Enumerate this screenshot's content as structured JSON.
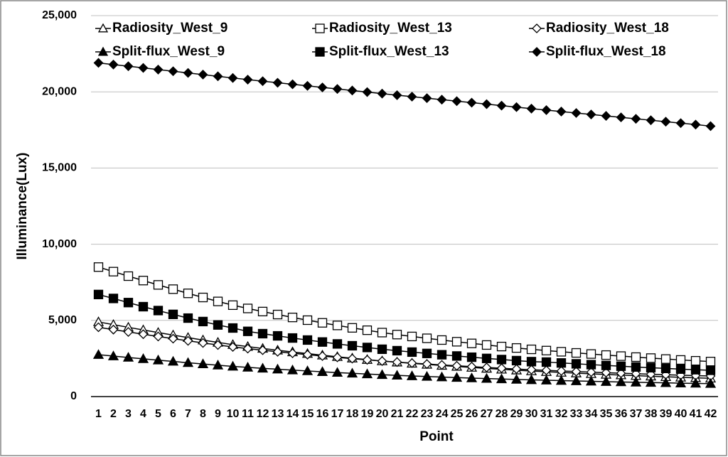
{
  "chart_data": {
    "type": "line",
    "x_label": "Point",
    "y_label": "Illuminance(Lux)",
    "categories": [
      1,
      2,
      3,
      4,
      5,
      6,
      7,
      8,
      9,
      10,
      11,
      12,
      13,
      14,
      15,
      16,
      17,
      18,
      19,
      20,
      21,
      22,
      23,
      24,
      25,
      26,
      27,
      28,
      29,
      30,
      31,
      32,
      33,
      34,
      35,
      36,
      37,
      38,
      39,
      40,
      41,
      42
    ],
    "ylim": [
      0,
      25000
    ],
    "yticks": [
      {
        "value": 0,
        "label": "0"
      },
      {
        "value": 5000,
        "label": "5,000"
      },
      {
        "value": 10000,
        "label": "10,000"
      },
      {
        "value": 15000,
        "label": "15,000"
      },
      {
        "value": 20000,
        "label": "20,000"
      },
      {
        "value": 25000,
        "label": "25,000"
      }
    ],
    "grid": true,
    "legend": "top",
    "series": [
      {
        "name": "Radiosity_West_9",
        "color": "#000000",
        "marker": "triangle",
        "filled": false,
        "values": [
          4900,
          4721,
          4545,
          4372,
          4202,
          4035,
          3871,
          3709,
          3554,
          3408,
          3280,
          3157,
          3041,
          2928,
          2820,
          2716,
          2615,
          2519,
          2427,
          2334,
          2256,
          2182,
          2110,
          2041,
          1976,
          1910,
          1848,
          1788,
          1731,
          1677,
          1630,
          1583,
          1539,
          1495,
          1453,
          1413,
          1374,
          1335,
          1298,
          1263,
          1230,
          1200
        ]
      },
      {
        "name": "Radiosity_West_13",
        "color": "#000000",
        "marker": "square",
        "filled": false,
        "values": [
          8500,
          8200,
          7905,
          7615,
          7330,
          7050,
          6775,
          6505,
          6245,
          6000,
          5785,
          5580,
          5385,
          5195,
          5015,
          4840,
          4670,
          4510,
          4355,
          4200,
          4070,
          3945,
          3825,
          3710,
          3600,
          3490,
          3385,
          3285,
          3190,
          3100,
          3020,
          2942,
          2867,
          2795,
          2725,
          2657,
          2591,
          2527,
          2465,
          2405,
          2350,
          2300
        ]
      },
      {
        "name": "Radiosity_West_18",
        "color": "#000000",
        "marker": "diamond",
        "filled": false,
        "values": [
          4550,
          4395,
          4243,
          4093,
          3946,
          3802,
          3660,
          3520,
          3386,
          3260,
          3149,
          3043,
          2942,
          2844,
          2751,
          2661,
          2573,
          2491,
          2411,
          2331,
          2264,
          2199,
          2137,
          2078,
          2021,
          1964,
          1910,
          1858,
          1809,
          1763,
          1722,
          1681,
          1643,
          1605,
          1569,
          1534,
          1500,
          1467,
          1435,
          1404,
          1376,
          1350
        ]
      },
      {
        "name": "Split-flux_West_9",
        "color": "#000000",
        "marker": "triangle",
        "filled": true,
        "values": [
          2750,
          2658,
          2568,
          2479,
          2391,
          2306,
          2221,
          2139,
          2059,
          1984,
          1918,
          1855,
          1795,
          1737,
          1682,
          1628,
          1576,
          1527,
          1480,
          1432,
          1392,
          1354,
          1317,
          1282,
          1248,
          1215,
          1183,
          1152,
          1123,
          1095,
          1071,
          1047,
          1024,
          1002,
          980,
          959,
          939,
          920,
          901,
          882,
          865,
          850
        ]
      },
      {
        "name": "Split-flux_West_13",
        "color": "#000000",
        "marker": "square",
        "filled": true,
        "values": [
          6700,
          6440,
          6170,
          5900,
          5645,
          5395,
          5150,
          4925,
          4700,
          4500,
          4281,
          4129,
          3985,
          3844,
          3711,
          3582,
          3456,
          3337,
          3223,
          3108,
          3012,
          2919,
          2831,
          2745,
          2664,
          2583,
          2505,
          2431,
          2361,
          2294,
          2265,
          2207,
          2150,
          2096,
          2044,
          1993,
          1943,
          1895,
          1849,
          1804,
          1763,
          1725
        ]
      },
      {
        "name": "Split-flux_West_18",
        "color": "#000000",
        "marker": "diamond",
        "filled": true,
        "values": [
          21900,
          21790,
          21680,
          21570,
          21460,
          21350,
          21240,
          21130,
          21020,
          20910,
          20800,
          20698,
          20596,
          20494,
          20392,
          20290,
          20188,
          20086,
          19984,
          19882,
          19780,
          19682,
          19584,
          19486,
          19388,
          19290,
          19192,
          19094,
          18996,
          18898,
          18800,
          18705,
          18610,
          18515,
          18420,
          18325,
          18230,
          18135,
          18040,
          17945,
          17850,
          17750
        ]
      }
    ]
  }
}
